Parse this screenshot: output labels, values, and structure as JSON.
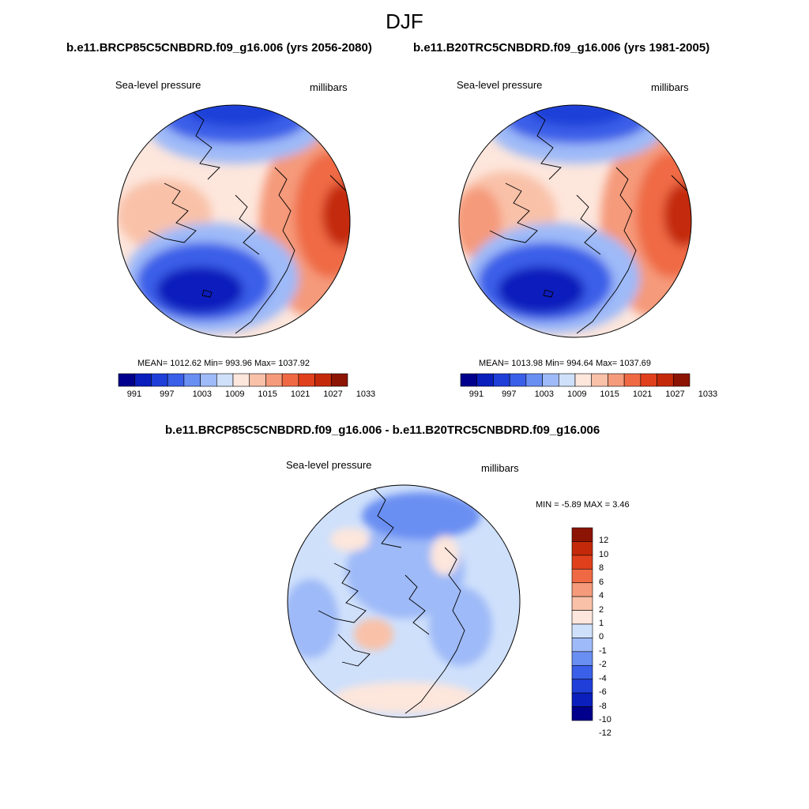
{
  "figure": {
    "title": "DJF",
    "left_title": "b.e11.BRCP85C5CNBDRD.f09_g16.006 (yrs 2056-2080)",
    "right_title": "b.e11.B20TRC5CNBDRD.f09_g16.006 (yrs 1981-2005)",
    "diff_title": "b.e11.BRCP85C5CNBDRD.f09_g16.006 - b.e11.B20TRC5CNBDRD.f09_g16.006"
  },
  "palette": {
    "abs_colors": [
      "#00008c",
      "#0a1fbc",
      "#1f3fd8",
      "#3a5fe8",
      "#6a8ff2",
      "#9ebaf8",
      "#cfe0fb",
      "#fde6dc",
      "#f9c1a8",
      "#f59a7a",
      "#ef6a44",
      "#e0401c",
      "#c42a0a",
      "#8c1404"
    ],
    "diff_colors": [
      "#00008c",
      "#0a1fbc",
      "#1f3fd8",
      "#3a5fe8",
      "#6a8ff2",
      "#9ebaf8",
      "#cfe0fb",
      "#fde6dc",
      "#f9c1a8",
      "#f59a7a",
      "#ef6a44",
      "#e0401c",
      "#c42a0a",
      "#8c1404"
    ],
    "coast": "#000000"
  },
  "chart_data": [
    {
      "type": "heatmap",
      "panel": "left",
      "projection": "north-polar-stereographic",
      "left_label": "Sea-level pressure",
      "right_label": "millibars",
      "stats_text": "MEAN= 1012.62  Min= 993.96  Max= 1037.92",
      "mean": 1012.62,
      "min": 993.96,
      "max": 1037.92,
      "colorbar_ticks": [
        "991",
        "997",
        "1003",
        "1009",
        "1015",
        "1021",
        "1027",
        "1033"
      ],
      "levels": [
        991,
        994,
        997,
        1000,
        1003,
        1006,
        1009,
        1012,
        1015,
        1018,
        1021,
        1024,
        1027,
        1030,
        1033
      ]
    },
    {
      "type": "heatmap",
      "panel": "right",
      "projection": "north-polar-stereographic",
      "left_label": "Sea-level pressure",
      "right_label": "millibars",
      "stats_text": "MEAN= 1013.98  Min= 994.64  Max= 1037.69",
      "mean": 1013.98,
      "min": 994.64,
      "max": 1037.69,
      "colorbar_ticks": [
        "991",
        "997",
        "1003",
        "1009",
        "1015",
        "1021",
        "1027",
        "1033"
      ],
      "levels": [
        991,
        994,
        997,
        1000,
        1003,
        1006,
        1009,
        1012,
        1015,
        1018,
        1021,
        1024,
        1027,
        1030,
        1033
      ]
    },
    {
      "type": "heatmap",
      "panel": "difference",
      "projection": "north-polar-stereographic",
      "left_label": "Sea-level pressure",
      "right_label": "millibars",
      "stats_text": "MIN =  -5.89 MAX =   3.46",
      "min": -5.89,
      "max": 3.46,
      "colorbar_ticks": [
        "12",
        "10",
        "8",
        "6",
        "4",
        "2",
        "1",
        "0",
        "-1",
        "-2",
        "-4",
        "-6",
        "-8",
        "-10",
        "-12"
      ]
    }
  ]
}
